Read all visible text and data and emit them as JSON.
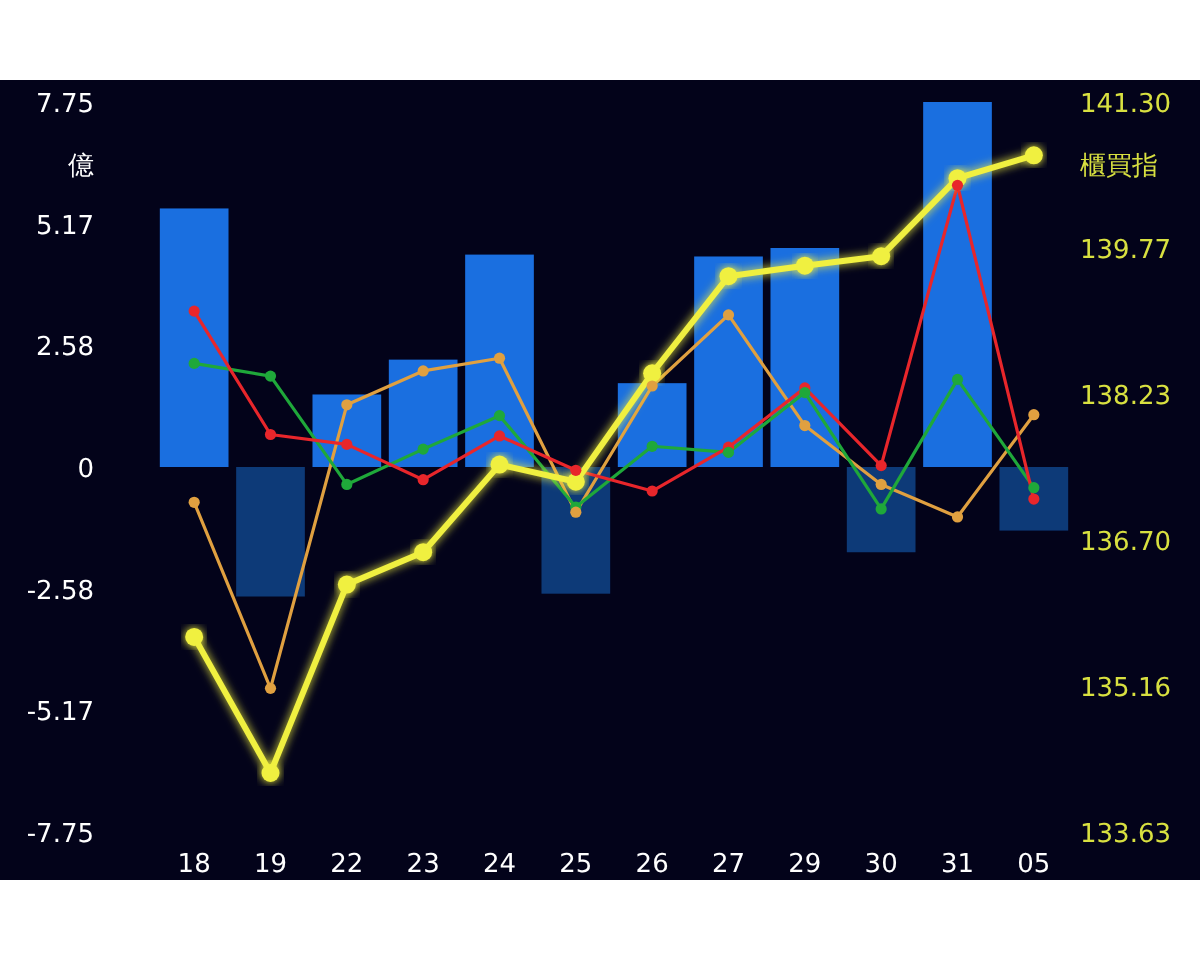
{
  "chart_data": {
    "type": "bar",
    "ylabel": "億",
    "y2label": "櫃買指",
    "categories": [
      "18",
      "19",
      "22",
      "23",
      "24",
      "25",
      "26",
      "27",
      "29",
      "30",
      "31",
      "05"
    ],
    "series": [
      {
        "colors": [
          "#1a6fe0",
          "#0d3a78",
          "#1a6fe0",
          "#1a6fe0",
          "#1a6fe0",
          "#0d3a78",
          "#1a6fe0",
          "#1a6fe0",
          "#1a6fe0",
          "#0d3a78",
          "#1a6fe0",
          "#0d3a78"
        ],
        "values": [
          5.49,
          -2.75,
          1.54,
          2.28,
          4.51,
          -2.69,
          1.78,
          4.47,
          4.65,
          -1.81,
          7.75,
          -1.35
        ]
      },
      {
        "type": "line",
        "color": "#e0a040",
        "values": [
          -0.75,
          -4.7,
          1.32,
          2.04,
          2.31,
          -0.96,
          1.72,
          3.23,
          0.88,
          -0.37,
          -1.06,
          1.11
        ]
      },
      {
        "type": "line",
        "color": "#1fa83a",
        "values": [
          2.2,
          1.93,
          -0.37,
          0.38,
          1.09,
          -0.85,
          0.44,
          0.31,
          1.58,
          -0.89,
          1.86,
          -0.44
        ]
      },
      {
        "type": "line",
        "color": "#e8262b",
        "values": [
          3.31,
          0.69,
          0.48,
          -0.27,
          0.66,
          -0.07,
          -0.51,
          0.42,
          1.68,
          0.03,
          5.98,
          -0.68
        ]
      },
      {
        "type": "line",
        "color": "#f0f040",
        "axis": "y2",
        "values": [
          135.68,
          134.25,
          136.23,
          136.57,
          137.49,
          137.31,
          138.45,
          139.47,
          139.58,
          139.68,
          140.5,
          140.74
        ]
      }
    ],
    "ylim": [
      -7.75,
      7.75
    ],
    "yticks": [
      -7.75,
      -5.17,
      -2.58,
      0,
      2.58,
      5.17,
      7.75
    ],
    "y2lim": [
      133.63,
      141.3
    ],
    "y2ticks": [
      133.63,
      135.16,
      {
        "value": 136.7,
        "label": "136.70"
      },
      138.23,
      139.77,
      {
        "value": 141.3,
        "label": "141.30"
      }
    ],
    "marker": "circle",
    "grid": false
  }
}
